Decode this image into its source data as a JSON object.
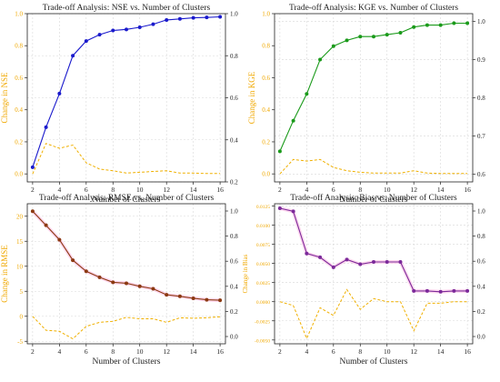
{
  "chart_data": [
    {
      "type": "line",
      "title": "Trade-off Analysis: NSE vs. Number of Clusters",
      "xlabel": "Number of Clusters",
      "ylabel_right": "",
      "ylabel_left_secondary": "Change in NSE",
      "x": [
        2,
        3,
        4,
        5,
        6,
        7,
        8,
        9,
        10,
        11,
        12,
        13,
        14,
        15,
        16
      ],
      "xticks": [
        "2",
        "4",
        "6",
        "8",
        "10",
        "12",
        "14",
        "16"
      ],
      "xlim": [
        1.6,
        16.4
      ],
      "primary": {
        "values": [
          0.27,
          0.46,
          0.62,
          0.8,
          0.87,
          0.9,
          0.92,
          0.925,
          0.935,
          0.95,
          0.97,
          0.975,
          0.98,
          0.982,
          0.985
        ],
        "color": "#1a1acc",
        "ylim": [
          0.2,
          1.0
        ],
        "ticks": [
          "0.2",
          "0.4",
          "0.6",
          "0.8",
          "1.0"
        ],
        "side": "right"
      },
      "secondary": {
        "values": [
          0.0,
          0.19,
          0.16,
          0.18,
          0.07,
          0.03,
          0.02,
          0.005,
          0.01,
          0.015,
          0.02,
          0.005,
          0.005,
          0.002,
          0.003
        ],
        "color": "#f0b000",
        "ylim": [
          -0.05,
          1.0
        ],
        "ticks": [
          "0.0",
          "0.2",
          "0.4",
          "0.6",
          "0.8",
          "1.0"
        ],
        "side": "left"
      }
    },
    {
      "type": "line",
      "title": "Trade-off Analysis: KGE vs. Number of Clusters",
      "xlabel": "Number of Clusters",
      "ylabel_left_secondary": "Change in KGE",
      "x": [
        2,
        3,
        4,
        5,
        6,
        7,
        8,
        9,
        10,
        11,
        12,
        13,
        14,
        15,
        16
      ],
      "xticks": [
        "2",
        "4",
        "6",
        "8",
        "10",
        "12",
        "14",
        "16"
      ],
      "xlim": [
        1.6,
        16.4
      ],
      "primary": {
        "values": [
          0.66,
          0.74,
          0.81,
          0.9,
          0.935,
          0.95,
          0.96,
          0.96,
          0.965,
          0.97,
          0.985,
          0.99,
          0.99,
          0.995,
          0.995
        ],
        "color": "#1a9a1a",
        "ylim": [
          0.58,
          1.02
        ],
        "ticks": [
          "0.6",
          "0.7",
          "0.8",
          "0.9",
          "1.0"
        ],
        "side": "right"
      },
      "secondary": {
        "values": [
          0.0,
          0.09,
          0.08,
          0.09,
          0.04,
          0.02,
          0.01,
          0.005,
          0.005,
          0.005,
          0.02,
          0.005,
          0.003,
          0.002,
          0.002
        ],
        "color": "#f0b000",
        "ylim": [
          -0.05,
          1.0
        ],
        "ticks": [
          "0.0",
          "0.2",
          "0.4",
          "0.6",
          "0.8",
          "1.0"
        ],
        "side": "left"
      }
    },
    {
      "type": "line",
      "title": "Trade-off Analysis: RMSE vs. Number of Clusters",
      "xlabel": "Number of Clusters",
      "ylabel_left_secondary": "Change in RMSE",
      "x": [
        2,
        3,
        4,
        5,
        6,
        7,
        8,
        9,
        10,
        11,
        12,
        13,
        14,
        15,
        16
      ],
      "xticks": [
        "2",
        "4",
        "6",
        "8",
        "10",
        "12",
        "14",
        "16"
      ],
      "xlim": [
        1.6,
        16.4
      ],
      "primary": {
        "values": [
          21.0,
          18.2,
          15.3,
          11.2,
          9.0,
          7.8,
          6.8,
          6.6,
          6.0,
          5.5,
          4.3,
          4.0,
          3.6,
          3.3,
          3.2
        ],
        "color": "#8b3a12",
        "ylim": [
          -5.5,
          22.5
        ],
        "ticks": [
          "-5",
          "0",
          "5",
          "10",
          "15",
          "20"
        ],
        "side": "left"
      },
      "secondary": {
        "values": [
          0.0,
          -2.8,
          -3.0,
          -4.5,
          -2.0,
          -1.2,
          -1.0,
          -0.2,
          -0.5,
          -0.5,
          -1.2,
          -0.3,
          -0.4,
          -0.3,
          -0.1
        ],
        "color": "#f0b000",
        "ylim": [
          -5.5,
          22.5
        ],
        "ticks": [
          "0.0",
          "0.2",
          "0.4",
          "0.6",
          "0.8",
          "1.0"
        ],
        "right_ticks_range": [
          0.0,
          1.0
        ],
        "side": "left"
      }
    },
    {
      "type": "line",
      "title": "Trade-off Analysis: Bias vs. Number of Clusters",
      "xlabel": "Number of Clusters",
      "ylabel_left_secondary": "Change in Bias",
      "x": [
        2,
        3,
        4,
        5,
        6,
        7,
        8,
        9,
        10,
        11,
        12,
        13,
        14,
        15,
        16
      ],
      "xticks": [
        "2",
        "4",
        "6",
        "8",
        "10",
        "12",
        "14",
        "16"
      ],
      "xlim": [
        1.6,
        16.4
      ],
      "primary": {
        "values": [
          0.0122,
          0.0118,
          0.0063,
          0.0058,
          0.0045,
          0.0055,
          0.0049,
          0.0052,
          0.0052,
          0.0052,
          0.0014,
          0.0014,
          0.0013,
          0.0014,
          0.0014
        ],
        "color": "#7b2a9a",
        "ylim": [
          -0.0055,
          0.0128
        ],
        "ticks": [
          "-0.0050",
          "-0.0025",
          "0.0000",
          "0.0025",
          "0.0050",
          "0.0075",
          "0.0100",
          "0.0125"
        ],
        "side": "left"
      },
      "secondary": {
        "values": [
          0.0,
          -0.0005,
          -0.0048,
          -0.0008,
          -0.0018,
          0.0016,
          -0.001,
          0.0004,
          0.0,
          0.0,
          -0.0038,
          -0.0002,
          -0.0002,
          0.0,
          0.0
        ],
        "color": "#f0b000",
        "ylim": [
          -0.0055,
          0.0128
        ],
        "ticks": [
          "0.0",
          "0.2",
          "0.4",
          "0.6",
          "0.8",
          "1.0"
        ],
        "right_ticks_range": [
          0.0,
          1.0
        ],
        "side": "left"
      }
    }
  ]
}
